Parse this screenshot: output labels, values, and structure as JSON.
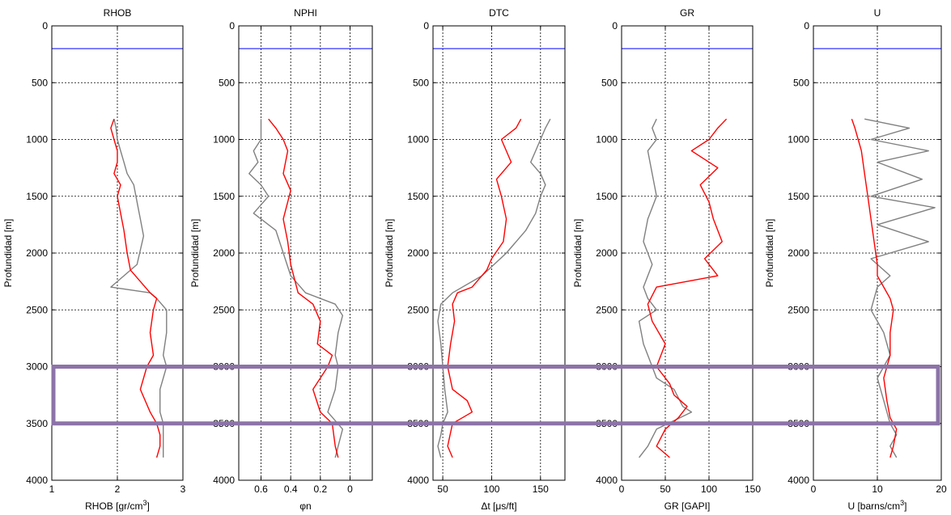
{
  "chart_data": [
    {
      "type": "line",
      "title": "RHOB",
      "xlabel": "RHOB [gr/cm",
      "xlabel_sup": "3",
      "xlabel_tail": "]",
      "ylabel": "Profundidad [m]",
      "xlim": [
        1,
        3
      ],
      "xreverse": false,
      "xticks": [
        1,
        2,
        3
      ],
      "xtick_labels": [
        "1",
        "2",
        "3"
      ],
      "ylim": [
        0,
        4000
      ],
      "yticks": [
        0,
        500,
        1000,
        1500,
        2000,
        2500,
        3000,
        3500,
        4000
      ],
      "ytick_labels": [
        "0",
        "500",
        "1000",
        "1500",
        "2000",
        "2500",
        "3000",
        "3500",
        "4000"
      ],
      "grid": true,
      "reference_line_depth": 200,
      "series": [
        {
          "color": "#808080",
          "x": [
            1.95,
            1.98,
            2.0,
            2.05,
            2.1,
            2.15,
            2.25,
            2.3,
            2.35,
            2.4,
            2.3,
            1.9,
            2.5,
            2.6,
            2.75,
            2.75,
            2.7,
            2.75,
            2.65,
            2.65,
            2.7,
            2.7,
            2.7
          ],
          "y": [
            820,
            900,
            1000,
            1100,
            1200,
            1300,
            1400,
            1550,
            1700,
            1850,
            2100,
            2300,
            2350,
            2400,
            2500,
            2700,
            2900,
            3000,
            3200,
            3400,
            3500,
            3700,
            3800
          ]
        },
        {
          "color": "#ff0000",
          "x": [
            1.95,
            1.9,
            1.95,
            2.0,
            2.0,
            1.95,
            2.05,
            2.0,
            2.05,
            2.1,
            2.15,
            2.2,
            2.5,
            2.6,
            2.55,
            2.5,
            2.55,
            2.45,
            2.35,
            2.5,
            2.6,
            2.65,
            2.65,
            2.6
          ],
          "y": [
            820,
            900,
            1000,
            1100,
            1200,
            1300,
            1400,
            1500,
            1650,
            1800,
            2000,
            2150,
            2350,
            2400,
            2500,
            2700,
            2900,
            3000,
            3200,
            3400,
            3500,
            3600,
            3700,
            3800
          ]
        }
      ]
    },
    {
      "type": "line",
      "title": "NPHI",
      "xlabel": "φn",
      "ylabel": "Profundidad [m]",
      "xlim": [
        -0.15,
        0.75
      ],
      "xreverse": true,
      "xticks": [
        0.6,
        0.4,
        0.2,
        0
      ],
      "xtick_labels": [
        "0.6",
        "0.4",
        "0.2",
        "0"
      ],
      "ylim": [
        0,
        4000
      ],
      "yticks": [
        0,
        500,
        1000,
        1500,
        2000,
        2500,
        3000,
        3500,
        4000
      ],
      "ytick_labels": [
        "0",
        "500",
        "1000",
        "1500",
        "2000",
        "2500",
        "3000",
        "3500",
        "4000"
      ],
      "grid": true,
      "reference_line_depth": 200,
      "series": [
        {
          "color": "#808080",
          "x": [
            0.6,
            0.6,
            0.6,
            0.65,
            0.62,
            0.68,
            0.6,
            0.55,
            0.65,
            0.5,
            0.45,
            0.4,
            0.3,
            0.1,
            0.05,
            0.08,
            0.1,
            0.08,
            0.1,
            0.15,
            0.05,
            0.08,
            0.1
          ],
          "y": [
            820,
            900,
            1000,
            1100,
            1200,
            1300,
            1400,
            1500,
            1650,
            1800,
            2000,
            2200,
            2350,
            2450,
            2550,
            2700,
            2900,
            3000,
            3200,
            3400,
            3550,
            3700,
            3800
          ]
        },
        {
          "color": "#ff0000",
          "x": [
            0.55,
            0.5,
            0.45,
            0.42,
            0.45,
            0.4,
            0.42,
            0.45,
            0.42,
            0.4,
            0.38,
            0.35,
            0.3,
            0.25,
            0.2,
            0.22,
            0.12,
            0.15,
            0.25,
            0.2,
            0.12,
            0.1,
            0.08
          ],
          "y": [
            820,
            900,
            1000,
            1100,
            1300,
            1450,
            1550,
            1700,
            1900,
            2100,
            2200,
            2350,
            2400,
            2450,
            2600,
            2800,
            2900,
            3000,
            3200,
            3400,
            3500,
            3700,
            3800
          ]
        }
      ]
    },
    {
      "type": "line",
      "title": "DTC",
      "xlabel": "Δt [μs/ft]",
      "ylabel": "Profundidad [m]",
      "xlim": [
        40,
        175
      ],
      "xreverse": false,
      "xticks": [
        50,
        100,
        150
      ],
      "xtick_labels": [
        "50",
        "100",
        "150"
      ],
      "ylim": [
        0,
        4000
      ],
      "yticks": [
        0,
        500,
        1000,
        1500,
        2000,
        2500,
        3000,
        3500,
        4000
      ],
      "ytick_labels": [
        "0",
        "500",
        "1000",
        "1500",
        "2000",
        "2500",
        "3000",
        "3500",
        "4000"
      ],
      "grid": true,
      "reference_line_depth": 200,
      "series": [
        {
          "color": "#808080",
          "x": [
            160,
            155,
            150,
            145,
            140,
            150,
            155,
            150,
            145,
            135,
            115,
            90,
            60,
            48,
            45,
            48,
            50,
            52,
            55,
            50,
            48,
            45,
            48
          ],
          "y": [
            820,
            900,
            1000,
            1100,
            1200,
            1300,
            1400,
            1500,
            1650,
            1800,
            2000,
            2200,
            2350,
            2450,
            2600,
            2800,
            3000,
            3200,
            3400,
            3500,
            3600,
            3700,
            3800
          ]
        },
        {
          "color": "#ff0000",
          "x": [
            130,
            125,
            110,
            115,
            120,
            105,
            110,
            115,
            112,
            100,
            95,
            80,
            65,
            60,
            62,
            58,
            55,
            60,
            75,
            80,
            60,
            55,
            60
          ],
          "y": [
            820,
            900,
            1000,
            1100,
            1200,
            1350,
            1500,
            1700,
            1900,
            2050,
            2150,
            2300,
            2350,
            2450,
            2600,
            2800,
            3000,
            3200,
            3300,
            3400,
            3500,
            3700,
            3800
          ]
        }
      ]
    },
    {
      "type": "line",
      "title": "GR",
      "xlabel": "GR [GAPI]",
      "ylabel": "Profundidad [m]",
      "xlim": [
        0,
        150
      ],
      "xreverse": false,
      "xticks": [
        0,
        50,
        100,
        150
      ],
      "xtick_labels": [
        "0",
        "50",
        "100",
        "150"
      ],
      "ylim": [
        0,
        4000
      ],
      "yticks": [
        0,
        500,
        1000,
        1500,
        2000,
        2500,
        3000,
        3500,
        4000
      ],
      "ytick_labels": [
        "0",
        "500",
        "1000",
        "1500",
        "2000",
        "2500",
        "3000",
        "3500",
        "4000"
      ],
      "grid": true,
      "reference_line_depth": 200,
      "series": [
        {
          "color": "#808080",
          "x": [
            40,
            35,
            40,
            30,
            35,
            40,
            30,
            25,
            35,
            30,
            25,
            30,
            40,
            20,
            25,
            30,
            35,
            40,
            60,
            70,
            80,
            40,
            30,
            20
          ],
          "y": [
            820,
            900,
            1000,
            1100,
            1300,
            1500,
            1700,
            1900,
            2100,
            2200,
            2300,
            2400,
            2500,
            2600,
            2800,
            2900,
            3000,
            3100,
            3200,
            3350,
            3400,
            3550,
            3700,
            3800
          ]
        },
        {
          "color": "#ff0000",
          "x": [
            120,
            110,
            100,
            80,
            110,
            90,
            100,
            105,
            115,
            95,
            110,
            40,
            30,
            35,
            50,
            40,
            55,
            60,
            75,
            65,
            50,
            40,
            55
          ],
          "y": [
            820,
            900,
            1000,
            1100,
            1250,
            1400,
            1550,
            1700,
            1900,
            2050,
            2200,
            2300,
            2450,
            2600,
            2800,
            3000,
            3150,
            3250,
            3350,
            3450,
            3550,
            3700,
            3800
          ]
        }
      ]
    },
    {
      "type": "line",
      "title": "U",
      "xlabel": "U [barns/cm",
      "xlabel_sup": "3",
      "xlabel_tail": "]",
      "ylabel": "Profundidad [m]",
      "xlim": [
        0,
        20
      ],
      "xreverse": false,
      "xticks": [
        0,
        10,
        20
      ],
      "xtick_labels": [
        "0",
        "10",
        "20"
      ],
      "ylim": [
        0,
        4000
      ],
      "yticks": [
        0,
        500,
        1000,
        1500,
        2000,
        2500,
        3000,
        3500,
        4000
      ],
      "ytick_labels": [
        "0",
        "500",
        "1000",
        "1500",
        "2000",
        "2500",
        "3000",
        "3500",
        "4000"
      ],
      "grid": true,
      "reference_line_depth": 200,
      "series": [
        {
          "color": "#808080",
          "x": [
            8,
            15,
            9,
            18,
            10,
            17,
            9,
            19,
            10,
            18,
            9,
            12,
            10,
            9,
            11,
            12,
            10,
            11,
            12,
            13,
            12,
            13
          ],
          "y": [
            820,
            900,
            1000,
            1100,
            1200,
            1350,
            1500,
            1600,
            1750,
            1900,
            2050,
            2200,
            2300,
            2500,
            2700,
            2900,
            3100,
            3300,
            3500,
            3600,
            3700,
            3800
          ]
        },
        {
          "color": "#ff0000",
          "x": [
            6,
            6.5,
            7,
            7.5,
            8,
            8.5,
            9,
            9.5,
            10,
            10,
            11,
            12,
            12.5,
            12,
            12,
            11,
            11.5,
            12,
            13,
            12.5,
            12
          ],
          "y": [
            820,
            900,
            1000,
            1100,
            1300,
            1500,
            1700,
            1900,
            2100,
            2200,
            2300,
            2400,
            2500,
            2700,
            2900,
            3100,
            3300,
            3450,
            3550,
            3700,
            3800
          ]
        }
      ]
    }
  ],
  "highlight_box": {
    "color": "#8c73a8",
    "depth_top": 3000,
    "depth_bottom": 3500
  },
  "reference_line_color": "#0000ff",
  "grid_color": "#000000"
}
